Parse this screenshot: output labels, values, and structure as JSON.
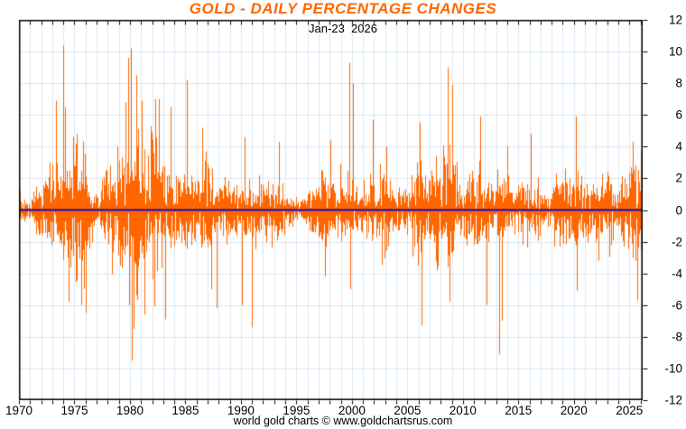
{
  "header": {
    "title": "GOLD - DAILY PERCENTAGE CHANGES",
    "subtitle_date": "Jan-23  2026"
  },
  "footer": {
    "credit": "world gold charts © www.goldchartsrus.com"
  },
  "chart_data": {
    "type": "bar",
    "title": "GOLD - DAILY PERCENTAGE CHANGES",
    "subtitle": "Jan-23  2026",
    "description": "Daily percentage change of the gold price, one thin vertical bar per trading day from 0%, 1970 through Jan-23 2026.",
    "x_axis": {
      "min_year": 1970,
      "max_year": 2026.2,
      "minor_tick_every_years": 1,
      "labeled_tick_every_years": 5,
      "tick_labels": [
        "1970",
        "1975",
        "1980",
        "1985",
        "1990",
        "1995",
        "2000",
        "2005",
        "2010",
        "2015",
        "2020",
        "2025"
      ]
    },
    "y_axis": {
      "min": -12,
      "max": 12,
      "tick_step": 2,
      "side": "right",
      "tick_labels": [
        "12",
        "10",
        "8",
        "6",
        "4",
        "2",
        "0",
        "-2",
        "-4",
        "-6",
        "-8",
        "-10",
        "-12"
      ]
    },
    "grid": {
      "vertical_every_years": 1,
      "horizontal_every_pct": 2
    },
    "zero_line_value": 0,
    "style": {
      "bar_color": "#FF6600",
      "title_color": "#FF6600",
      "zero_line_color": "#0000CC",
      "grid_color": "#DCE6F2",
      "axis_color": "#000000",
      "text_color": "#000000",
      "background": "#FFFFFF"
    },
    "series": [
      {
        "name": "gold daily % change",
        "yearly_volatility_profile_columns": [
          "year",
          "typical_daily_stdev_pct",
          "max_up_pct",
          "max_down_pct"
        ],
        "yearly_volatility_profile": [
          [
            1970,
            0.3,
            1.2,
            1.0
          ],
          [
            1971,
            0.4,
            1.8,
            1.6
          ],
          [
            1972,
            0.65,
            3.0,
            2.2
          ],
          [
            1973,
            1.6,
            10.4,
            5.5
          ],
          [
            1974,
            1.9,
            7.0,
            6.6
          ],
          [
            1975,
            1.5,
            5.0,
            6.2
          ],
          [
            1976,
            1.3,
            4.5,
            6.5
          ],
          [
            1977,
            0.75,
            2.5,
            2.2
          ],
          [
            1978,
            1.1,
            4.0,
            4.5
          ],
          [
            1979,
            1.6,
            7.0,
            6.0
          ],
          [
            1980,
            2.5,
            10.2,
            9.5
          ],
          [
            1981,
            1.8,
            6.9,
            6.6
          ],
          [
            1982,
            1.85,
            7.0,
            6.3
          ],
          [
            1983,
            1.45,
            6.5,
            6.9
          ],
          [
            1984,
            1.05,
            4.5,
            4.5
          ],
          [
            1985,
            1.25,
            8.2,
            5.0
          ],
          [
            1986,
            1.2,
            5.2,
            4.5
          ],
          [
            1987,
            1.3,
            5.0,
            6.2
          ],
          [
            1988,
            0.95,
            3.6,
            4.0
          ],
          [
            1989,
            0.95,
            4.0,
            4.5
          ],
          [
            1990,
            1.0,
            4.6,
            6.0
          ],
          [
            1991,
            0.8,
            3.5,
            7.4
          ],
          [
            1992,
            0.7,
            2.8,
            3.0
          ],
          [
            1993,
            0.85,
            4.3,
            3.5
          ],
          [
            1994,
            0.6,
            2.2,
            2.0
          ],
          [
            1995,
            0.5,
            1.8,
            1.8
          ],
          [
            1996,
            0.45,
            1.7,
            2.0
          ],
          [
            1997,
            0.8,
            3.2,
            4.2
          ],
          [
            1998,
            0.9,
            4.4,
            4.7
          ],
          [
            1999,
            1.0,
            9.3,
            5.0
          ],
          [
            2000,
            0.95,
            8.0,
            4.5
          ],
          [
            2001,
            0.85,
            5.7,
            3.5
          ],
          [
            2002,
            0.85,
            3.5,
            3.5
          ],
          [
            2003,
            0.95,
            4.0,
            3.8
          ],
          [
            2004,
            0.9,
            3.5,
            4.0
          ],
          [
            2005,
            0.8,
            3.0,
            3.5
          ],
          [
            2006,
            1.25,
            5.5,
            7.3
          ],
          [
            2007,
            1.0,
            4.0,
            3.8
          ],
          [
            2008,
            1.7,
            9.0,
            5.8
          ],
          [
            2009,
            1.3,
            7.9,
            5.5
          ],
          [
            2010,
            1.0,
            4.0,
            4.2
          ],
          [
            2011,
            1.25,
            5.9,
            6.0
          ],
          [
            2012,
            0.9,
            3.5,
            6.0
          ],
          [
            2013,
            1.25,
            5.0,
            9.1
          ],
          [
            2014,
            0.9,
            4.0,
            3.5
          ],
          [
            2015,
            0.9,
            4.2,
            3.5
          ],
          [
            2016,
            1.0,
            4.8,
            3.5
          ],
          [
            2017,
            0.7,
            2.5,
            2.2
          ],
          [
            2018,
            0.65,
            2.5,
            2.3
          ],
          [
            2019,
            0.8,
            3.5,
            2.8
          ],
          [
            2020,
            1.15,
            5.9,
            5.1
          ],
          [
            2021,
            0.9,
            3.3,
            3.4
          ],
          [
            2022,
            0.95,
            3.5,
            3.2
          ],
          [
            2023,
            0.85,
            3.2,
            3.5
          ],
          [
            2024,
            0.95,
            3.6,
            3.4
          ],
          [
            2025,
            1.3,
            4.3,
            5.7
          ],
          [
            2026,
            1.1,
            3.7,
            2.5
          ]
        ],
        "notable_extremes_columns": [
          "decimal_year",
          "daily_pct_change"
        ],
        "notable_extremes": [
          [
            1972.8,
            3.0
          ],
          [
            1973.3,
            6.9
          ],
          [
            1973.95,
            10.4
          ],
          [
            1974.15,
            6.5
          ],
          [
            1974.5,
            -5.8
          ],
          [
            1975.2,
            4.8
          ],
          [
            1975.6,
            -6.0
          ],
          [
            1976.0,
            -6.5
          ],
          [
            1978.85,
            4.0
          ],
          [
            1979.6,
            6.8
          ],
          [
            1979.85,
            9.6
          ],
          [
            1979.95,
            -6.0
          ],
          [
            1980.05,
            10.2
          ],
          [
            1980.2,
            -9.5
          ],
          [
            1980.35,
            -7.5
          ],
          [
            1980.6,
            8.5
          ],
          [
            1981.1,
            6.9
          ],
          [
            1981.3,
            -6.6
          ],
          [
            1982.2,
            -6.1
          ],
          [
            1982.6,
            7.0
          ],
          [
            1983.2,
            -6.9
          ],
          [
            1983.7,
            6.5
          ],
          [
            1985.1,
            8.2
          ],
          [
            1986.5,
            5.2
          ],
          [
            1987.3,
            -5.0
          ],
          [
            1987.8,
            -6.2
          ],
          [
            1990.1,
            -6.0
          ],
          [
            1990.3,
            4.6
          ],
          [
            1991.0,
            -7.4
          ],
          [
            1993.4,
            4.3
          ],
          [
            1997.6,
            -4.2
          ],
          [
            1998.1,
            4.4
          ],
          [
            1999.75,
            9.3
          ],
          [
            1999.85,
            -5.0
          ],
          [
            2000.1,
            8.0
          ],
          [
            2001.9,
            5.7
          ],
          [
            2003.1,
            4.0
          ],
          [
            2006.1,
            5.5
          ],
          [
            2006.3,
            -7.3
          ],
          [
            2008.65,
            9.0
          ],
          [
            2008.8,
            -5.8
          ],
          [
            2009.05,
            7.9
          ],
          [
            2011.6,
            5.9
          ],
          [
            2012.1,
            -6.0
          ],
          [
            2013.3,
            -9.1
          ],
          [
            2013.5,
            -7.0
          ],
          [
            2014.0,
            4.0
          ],
          [
            2016.1,
            4.8
          ],
          [
            2020.2,
            5.9
          ],
          [
            2020.3,
            -5.1
          ],
          [
            2025.3,
            4.3
          ],
          [
            2025.7,
            -5.7
          ],
          [
            2026.05,
            3.7
          ]
        ]
      }
    ]
  }
}
